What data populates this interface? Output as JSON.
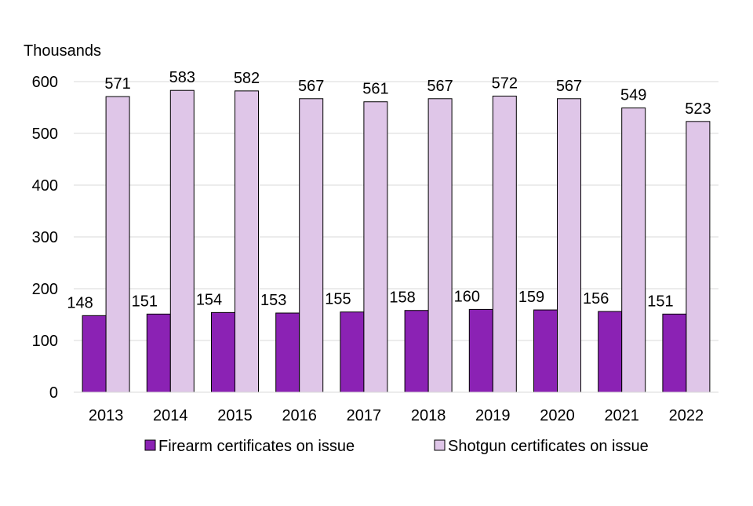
{
  "chart_data": {
    "type": "bar",
    "title": "",
    "xlabel": "",
    "ylabel": "Thousands",
    "ylim": [
      0,
      600
    ],
    "yticks": [
      0,
      100,
      200,
      300,
      400,
      500,
      600
    ],
    "grid": true,
    "legend_position": "bottom",
    "categories": [
      "2013",
      "2014",
      "2015",
      "2016",
      "2017",
      "2018",
      "2019",
      "2020",
      "2021",
      "2022"
    ],
    "series": [
      {
        "name": "Firearm certificates on issue",
        "color": "#8b22b4",
        "values": [
          148,
          151,
          154,
          153,
          155,
          158,
          160,
          159,
          156,
          151
        ]
      },
      {
        "name": "Shotgun certificates on issue",
        "color": "#dfc6e8",
        "values": [
          571,
          583,
          582,
          567,
          561,
          567,
          572,
          567,
          549,
          523
        ]
      }
    ]
  }
}
